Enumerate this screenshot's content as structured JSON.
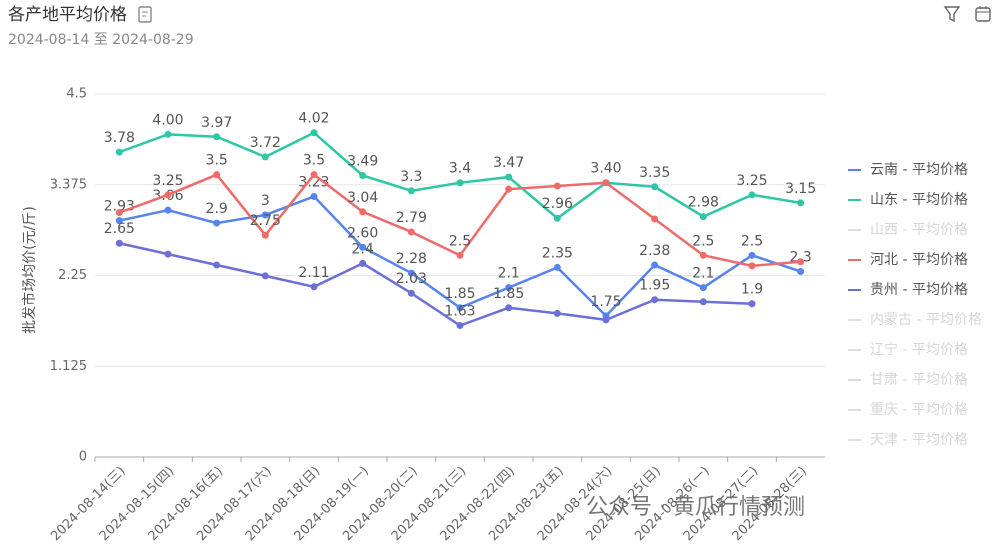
{
  "chart_data": {
    "type": "line",
    "title": "各产地平均价格",
    "subtitle": "2024-08-14 至 2024-08-29",
    "ylabel": "批发市场均价(元/斤)",
    "watermark": "公众号 · 黄瓜行情预测",
    "categories": [
      "2024-08-14(三)",
      "2024-08-15(四)",
      "2024-08-16(五)",
      "2024-08-17(六)",
      "2024-08-18(日)",
      "2024-08-19(一)",
      "2024-08-20(二)",
      "2024-08-21(三)",
      "2024-08-22(四)",
      "2024-08-23(五)",
      "2024-08-24(六)",
      "2024-08-25(日)",
      "2024-08-26(一)",
      "2024-08-27(二)",
      "2024-08-28(三)"
    ],
    "ylim": [
      0,
      4.5
    ],
    "yticks": [
      0,
      1.125,
      2.25,
      3.375,
      4.5
    ],
    "grid": true,
    "legend": "right",
    "series": [
      {
        "name": "云南 - 平均价格",
        "color": "#5584f0",
        "visible": true,
        "values": [
          2.93,
          3.06,
          2.9,
          3,
          3.23,
          2.6,
          2.28,
          1.85,
          2.1,
          2.35,
          1.75,
          2.38,
          2.1,
          2.5,
          2.3
        ],
        "value_labels": [
          "2.93",
          "3.06",
          "2.9",
          "3",
          "3.23",
          "2.60",
          "2.28",
          "1.85",
          "2.1",
          "2.35",
          "1.75",
          "2.38",
          "2.1",
          "2.5",
          "2.3"
        ]
      },
      {
        "name": "山东 - 平均价格",
        "color": "#2ec7a5",
        "visible": true,
        "values": [
          3.78,
          4.0,
          3.97,
          3.72,
          4.02,
          3.49,
          3.3,
          3.4,
          3.47,
          2.96,
          3.4,
          3.35,
          2.98,
          3.25,
          3.15
        ],
        "value_labels": [
          "3.78",
          "4.00",
          "3.97",
          "3.72",
          "4.02",
          "3.49",
          "3.3",
          "3.4",
          "3.47",
          "2.96",
          "3.40",
          "3.35",
          "2.98",
          "3.25",
          "3.15"
        ]
      },
      {
        "name": "山西 - 平均价格",
        "color": "#dddddd",
        "visible": false,
        "values": [
          null,
          null,
          null,
          null,
          null,
          null,
          null,
          null,
          null,
          null,
          null,
          null,
          null,
          null,
          null
        ]
      },
      {
        "name": "河北 - 平均价格",
        "color": "#f06a6a",
        "visible": true,
        "values": [
          3.03,
          3.25,
          3.5,
          2.75,
          3.5,
          3.04,
          2.79,
          2.5,
          3.32,
          3.36,
          3.4,
          2.95,
          2.5,
          2.37,
          2.42
        ],
        "value_labels": [
          null,
          "3.25",
          "3.5",
          "2.75",
          "3.5",
          "3.04",
          "2.79",
          "2.5",
          null,
          null,
          null,
          null,
          "2.5",
          null,
          null
        ]
      },
      {
        "name": "贵州 - 平均价格",
        "color": "#6c6fd6",
        "visible": true,
        "values": [
          2.65,
          2.515,
          2.38,
          2.245,
          2.11,
          2.4,
          2.03,
          1.63,
          1.85,
          1.78,
          1.7,
          1.95,
          1.925,
          1.9,
          null
        ],
        "value_labels": [
          "2.65",
          null,
          null,
          null,
          "2.11",
          "2.4",
          "2.03",
          "1.63",
          "1.85",
          null,
          null,
          "1.95",
          null,
          "1.9",
          null
        ]
      },
      {
        "name": "内蒙古 - 平均价格",
        "color": "#dddddd",
        "visible": false,
        "values": [
          null,
          null,
          null,
          null,
          null,
          null,
          null,
          null,
          null,
          null,
          null,
          null,
          null,
          null,
          null
        ]
      },
      {
        "name": "辽宁 - 平均价格",
        "color": "#dddddd",
        "visible": false,
        "values": [
          null,
          null,
          null,
          null,
          null,
          null,
          null,
          null,
          null,
          null,
          null,
          null,
          null,
          null,
          null
        ]
      },
      {
        "name": "甘肃 - 平均价格",
        "color": "#dddddd",
        "visible": false,
        "values": [
          null,
          null,
          null,
          null,
          null,
          null,
          null,
          null,
          null,
          null,
          null,
          null,
          null,
          null,
          null
        ]
      },
      {
        "name": "重庆 - 平均价格",
        "color": "#dddddd",
        "visible": false,
        "values": [
          null,
          null,
          null,
          null,
          null,
          null,
          null,
          null,
          null,
          null,
          null,
          null,
          null,
          null,
          null
        ]
      },
      {
        "name": "天津 - 平均价格",
        "color": "#dddddd",
        "visible": false,
        "values": [
          null,
          null,
          null,
          null,
          null,
          null,
          null,
          null,
          null,
          null,
          null,
          null,
          null,
          null,
          null
        ]
      }
    ]
  }
}
